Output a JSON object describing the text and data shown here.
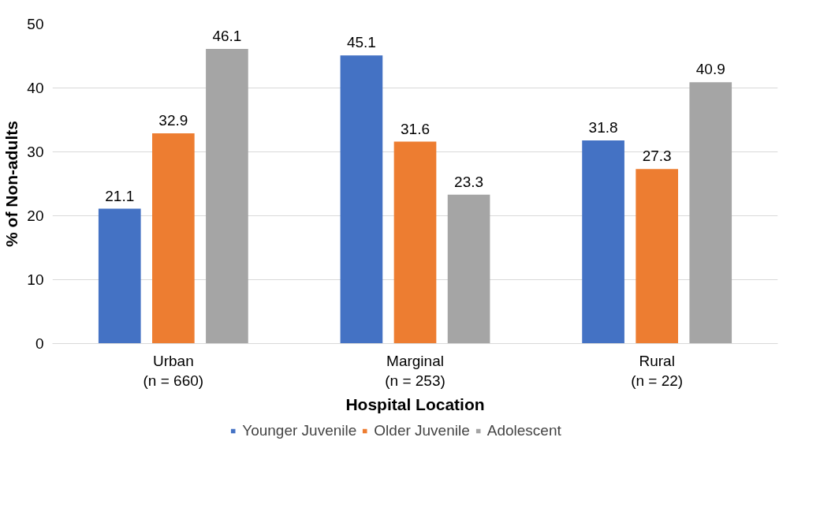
{
  "chart_data": {
    "type": "bar",
    "xlabel": "Hospital Location",
    "ylabel": "% of Non-adults",
    "categories": [
      "Urban\n(n = 660)",
      "Marginal\n(n = 253)",
      "Rural\n(n = 22)"
    ],
    "series": [
      {
        "name": "Younger Juvenile",
        "color": "#4472c4",
        "values": [
          21.1,
          45.1,
          31.8
        ]
      },
      {
        "name": "Older Juvenile",
        "color": "#ed7d31",
        "values": [
          32.9,
          31.6,
          27.3
        ]
      },
      {
        "name": "Adolescent",
        "color": "#a5a5a5",
        "values": [
          46.1,
          23.3,
          40.9
        ]
      }
    ],
    "ylim": [
      0,
      50
    ],
    "yticks": [
      0,
      10,
      20,
      30,
      40,
      50
    ],
    "grid": "y",
    "legend": "bottom",
    "data_labels": true
  }
}
